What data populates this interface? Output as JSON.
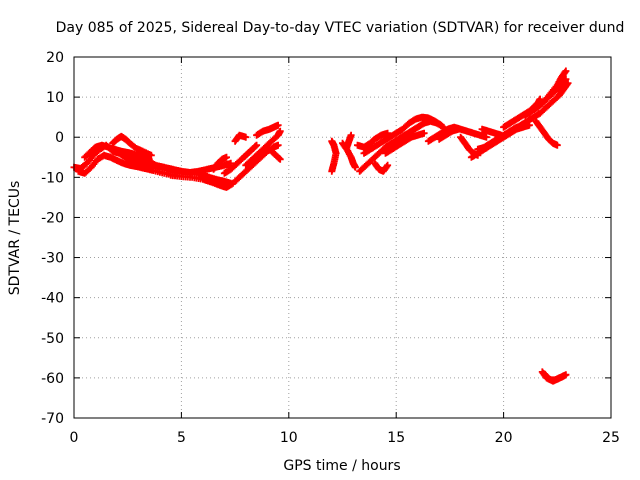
{
  "chart_data": {
    "type": "scatter",
    "title": "Day 085 of 2025, Sidereal Day-to-day VTEC variation (SDTVAR) for receiver dund",
    "xlabel": "GPS time / hours",
    "ylabel": "SDTVAR / TECUs",
    "xlim": [
      0,
      25
    ],
    "ylim": [
      -70,
      20
    ],
    "xticks": [
      0,
      5,
      10,
      15,
      20,
      25
    ],
    "yticks": [
      -70,
      -60,
      -50,
      -40,
      -30,
      -20,
      -10,
      0,
      10,
      20
    ],
    "grid": true,
    "marker": "+",
    "color": "#ff0000",
    "series": [
      {
        "name": "SDTVAR",
        "tracks": [
          [
            [
              0.0,
              -7.5
            ],
            [
              0.3,
              -7.8
            ],
            [
              0.6,
              -6.5
            ],
            [
              0.9,
              -4.5
            ],
            [
              1.2,
              -3.0
            ],
            [
              1.5,
              -2.0
            ],
            [
              1.8,
              -3.5
            ],
            [
              2.1,
              -4.0
            ],
            [
              2.4,
              -5.0
            ],
            [
              2.7,
              -5.5
            ],
            [
              3.0,
              -6.0
            ],
            [
              3.3,
              -6.5
            ],
            [
              3.6,
              -6.8
            ],
            [
              4.0,
              -7.5
            ],
            [
              4.5,
              -8.5
            ],
            [
              5.0,
              -9.0
            ]
          ],
          [
            [
              0.2,
              -8.5
            ],
            [
              0.5,
              -9.0
            ],
            [
              0.8,
              -7.5
            ],
            [
              1.1,
              -5.5
            ],
            [
              1.4,
              -4.5
            ],
            [
              1.7,
              -5.0
            ],
            [
              2.0,
              -5.8
            ],
            [
              2.3,
              -6.5
            ],
            [
              2.6,
              -7.0
            ],
            [
              2.9,
              -7.3
            ],
            [
              3.3,
              -7.8
            ],
            [
              3.7,
              -8.3
            ],
            [
              4.2,
              -9.0
            ],
            [
              4.7,
              -9.5
            ]
          ],
          [
            [
              0.5,
              -5.0
            ],
            [
              0.8,
              -3.5
            ],
            [
              1.0,
              -2.5
            ],
            [
              1.3,
              -2.0
            ],
            [
              1.6,
              -2.5
            ],
            [
              1.9,
              -3.0
            ],
            [
              2.2,
              -3.5
            ],
            [
              2.5,
              -3.8
            ],
            [
              2.8,
              -4.2
            ],
            [
              3.2,
              -5.0
            ],
            [
              3.5,
              -5.5
            ]
          ],
          [
            [
              1.8,
              -1.5
            ],
            [
              2.0,
              -0.5
            ],
            [
              2.2,
              0.2
            ],
            [
              2.4,
              -0.5
            ],
            [
              2.6,
              -1.5
            ],
            [
              2.9,
              -2.8
            ],
            [
              3.2,
              -3.5
            ],
            [
              3.6,
              -4.5
            ]
          ],
          [
            [
              3.5,
              -6.0
            ],
            [
              3.8,
              -7.0
            ],
            [
              4.2,
              -7.5
            ],
            [
              4.6,
              -8.0
            ],
            [
              5.0,
              -8.5
            ],
            [
              5.4,
              -8.8
            ],
            [
              5.8,
              -8.5
            ],
            [
              6.2,
              -8.0
            ],
            [
              6.6,
              -7.5
            ],
            [
              7.0,
              -7.0
            ],
            [
              7.3,
              -6.5
            ]
          ],
          [
            [
              4.5,
              -9.5
            ],
            [
              5.0,
              -9.8
            ],
            [
              5.5,
              -10.0
            ],
            [
              6.0,
              -10.5
            ],
            [
              6.4,
              -11.2
            ],
            [
              6.8,
              -12.0
            ],
            [
              7.1,
              -12.5
            ],
            [
              7.4,
              -11.5
            ]
          ],
          [
            [
              4.8,
              -8.5
            ],
            [
              5.3,
              -9.0
            ],
            [
              5.8,
              -9.3
            ],
            [
              6.2,
              -9.8
            ],
            [
              6.6,
              -10.5
            ],
            [
              7.0,
              -11.0
            ],
            [
              7.3,
              -11.5
            ]
          ],
          [
            [
              6.5,
              -8.0
            ],
            [
              6.7,
              -6.5
            ],
            [
              6.9,
              -5.5
            ],
            [
              7.1,
              -5.0
            ]
          ],
          [
            [
              7.0,
              -9.0
            ],
            [
              7.3,
              -8.0
            ],
            [
              7.6,
              -6.5
            ],
            [
              7.9,
              -5.0
            ],
            [
              8.1,
              -4.0
            ],
            [
              8.3,
              -3.0
            ],
            [
              8.5,
              -2.0
            ]
          ],
          [
            [
              7.5,
              -11.0
            ],
            [
              7.8,
              -9.5
            ],
            [
              8.1,
              -8.0
            ],
            [
              8.4,
              -6.5
            ],
            [
              8.7,
              -5.0
            ],
            [
              9.0,
              -3.5
            ],
            [
              9.3,
              -2.5
            ],
            [
              9.5,
              -2.0
            ]
          ],
          [
            [
              8.0,
              -7.0
            ],
            [
              8.3,
              -5.5
            ],
            [
              8.6,
              -4.0
            ],
            [
              8.9,
              -2.5
            ],
            [
              9.2,
              -1.0
            ],
            [
              9.5,
              0.5
            ],
            [
              9.6,
              1.5
            ]
          ],
          [
            [
              7.5,
              -1.0
            ],
            [
              7.7,
              0.5
            ],
            [
              8.0,
              0.0
            ]
          ],
          [
            [
              8.5,
              0.5
            ],
            [
              8.8,
              1.5
            ],
            [
              9.1,
              2.0
            ],
            [
              9.3,
              2.5
            ],
            [
              9.5,
              3.0
            ]
          ],
          [
            [
              9.2,
              -3.5
            ],
            [
              9.4,
              -4.5
            ],
            [
              9.6,
              -5.5
            ]
          ],
          [
            [
              12.0,
              -8.5
            ],
            [
              12.1,
              -6.5
            ],
            [
              12.2,
              -4.0
            ],
            [
              12.1,
              -2.0
            ],
            [
              12.0,
              -1.0
            ]
          ],
          [
            [
              12.5,
              -1.5
            ],
            [
              12.7,
              -3.0
            ],
            [
              12.9,
              -5.0
            ],
            [
              13.0,
              -6.5
            ],
            [
              13.1,
              -7.5
            ]
          ],
          [
            [
              12.9,
              0.5
            ],
            [
              12.8,
              -1.0
            ],
            [
              12.7,
              -2.5
            ]
          ],
          [
            [
              13.3,
              -8.5
            ],
            [
              13.6,
              -7.0
            ],
            [
              13.9,
              -5.5
            ],
            [
              14.2,
              -4.0
            ],
            [
              14.5,
              -2.5
            ],
            [
              14.8,
              -1.5
            ],
            [
              15.1,
              -0.5
            ],
            [
              15.4,
              0.5
            ],
            [
              15.7,
              1.5
            ],
            [
              16.0,
              2.5
            ],
            [
              16.3,
              3.5
            ],
            [
              16.6,
              4.0
            ],
            [
              16.9,
              3.5
            ],
            [
              17.2,
              2.5
            ]
          ],
          [
            [
              13.5,
              -4.0
            ],
            [
              13.8,
              -3.0
            ],
            [
              14.1,
              -2.0
            ],
            [
              14.4,
              -1.0
            ],
            [
              14.7,
              0.0
            ],
            [
              15.0,
              1.0
            ],
            [
              15.3,
              2.0
            ],
            [
              15.6,
              3.5
            ],
            [
              15.9,
              4.5
            ],
            [
              16.2,
              5.0
            ],
            [
              16.5,
              4.8
            ],
            [
              16.8,
              4.0
            ],
            [
              17.1,
              3.0
            ]
          ],
          [
            [
              14.0,
              -6.5
            ],
            [
              14.2,
              -8.0
            ],
            [
              14.4,
              -8.5
            ],
            [
              14.6,
              -7.0
            ]
          ],
          [
            [
              13.2,
              -2.0
            ],
            [
              13.5,
              -2.5
            ],
            [
              13.8,
              -1.5
            ],
            [
              14.0,
              -0.5
            ],
            [
              14.3,
              0.5
            ],
            [
              14.6,
              1.0
            ]
          ],
          [
            [
              14.5,
              -4.0
            ],
            [
              14.8,
              -3.0
            ],
            [
              15.1,
              -2.0
            ],
            [
              15.4,
              -1.0
            ],
            [
              15.7,
              0.0
            ],
            [
              16.0,
              0.5
            ],
            [
              16.3,
              1.0
            ]
          ],
          [
            [
              16.5,
              -1.0
            ],
            [
              16.8,
              0.0
            ],
            [
              17.1,
              1.0
            ],
            [
              17.4,
              2.0
            ],
            [
              17.7,
              2.5
            ],
            [
              18.0,
              2.0
            ],
            [
              18.3,
              1.5
            ],
            [
              18.6,
              1.0
            ],
            [
              18.9,
              0.5
            ],
            [
              19.2,
              0.0
            ]
          ],
          [
            [
              17.0,
              -0.5
            ],
            [
              17.3,
              0.5
            ],
            [
              17.6,
              1.5
            ],
            [
              17.9,
              2.0
            ]
          ],
          [
            [
              18.0,
              0.0
            ],
            [
              18.2,
              -1.5
            ],
            [
              18.4,
              -3.0
            ],
            [
              18.6,
              -4.0
            ],
            [
              18.8,
              -4.5
            ]
          ],
          [
            [
              18.5,
              -5.0
            ],
            [
              18.8,
              -4.0
            ],
            [
              19.1,
              -3.0
            ],
            [
              19.4,
              -2.0
            ],
            [
              19.7,
              -1.0
            ],
            [
              20.0,
              0.0
            ],
            [
              20.3,
              1.0
            ],
            [
              20.6,
              2.0
            ],
            [
              20.9,
              2.5
            ],
            [
              21.2,
              3.0
            ]
          ],
          [
            [
              18.8,
              -3.0
            ],
            [
              19.1,
              -2.5
            ],
            [
              19.4,
              -1.5
            ],
            [
              19.7,
              -0.5
            ],
            [
              20.0,
              0.5
            ],
            [
              20.3,
              1.5
            ],
            [
              20.6,
              2.5
            ]
          ],
          [
            [
              19.0,
              2.0
            ],
            [
              19.3,
              1.5
            ],
            [
              19.6,
              1.0
            ],
            [
              19.9,
              0.5
            ]
          ],
          [
            [
              20.0,
              2.5
            ],
            [
              20.3,
              3.5
            ],
            [
              20.6,
              4.5
            ],
            [
              20.9,
              5.5
            ],
            [
              21.2,
              6.5
            ],
            [
              21.5,
              7.5
            ],
            [
              21.8,
              8.5
            ],
            [
              22.1,
              10.0
            ],
            [
              22.4,
              11.5
            ],
            [
              22.7,
              13.0
            ],
            [
              22.9,
              14.5
            ]
          ],
          [
            [
              20.5,
              2.0
            ],
            [
              20.8,
              3.0
            ],
            [
              21.1,
              4.0
            ],
            [
              21.4,
              5.0
            ],
            [
              21.7,
              6.0
            ],
            [
              22.0,
              7.5
            ],
            [
              22.3,
              9.0
            ],
            [
              22.6,
              10.5
            ],
            [
              22.8,
              12.0
            ],
            [
              23.0,
              13.5
            ]
          ],
          [
            [
              21.0,
              5.5
            ],
            [
              21.3,
              6.5
            ],
            [
              21.6,
              7.5
            ],
            [
              21.9,
              9.0
            ],
            [
              22.2,
              11.0
            ],
            [
              22.5,
              13.0
            ],
            [
              22.7,
              15.0
            ],
            [
              22.9,
              16.5
            ]
          ],
          [
            [
              21.2,
              6.0
            ],
            [
              21.4,
              7.5
            ],
            [
              21.6,
              8.5
            ],
            [
              21.7,
              9.5
            ]
          ],
          [
            [
              21.5,
              4.0
            ],
            [
              21.7,
              2.5
            ],
            [
              21.9,
              1.0
            ],
            [
              22.1,
              -0.5
            ],
            [
              22.3,
              -1.5
            ],
            [
              22.5,
              -2.0
            ]
          ],
          [
            [
              21.8,
              -58.5
            ],
            [
              22.0,
              -60.0
            ],
            [
              22.2,
              -60.5
            ],
            [
              22.4,
              -60.5
            ],
            [
              22.6,
              -60.0
            ],
            [
              22.8,
              -59.5
            ]
          ],
          [
            [
              21.9,
              -59.0
            ],
            [
              22.1,
              -60.2
            ],
            [
              22.3,
              -60.8
            ],
            [
              22.5,
              -60.3
            ],
            [
              22.7,
              -59.8
            ],
            [
              22.9,
              -59.2
            ]
          ]
        ]
      }
    ]
  }
}
